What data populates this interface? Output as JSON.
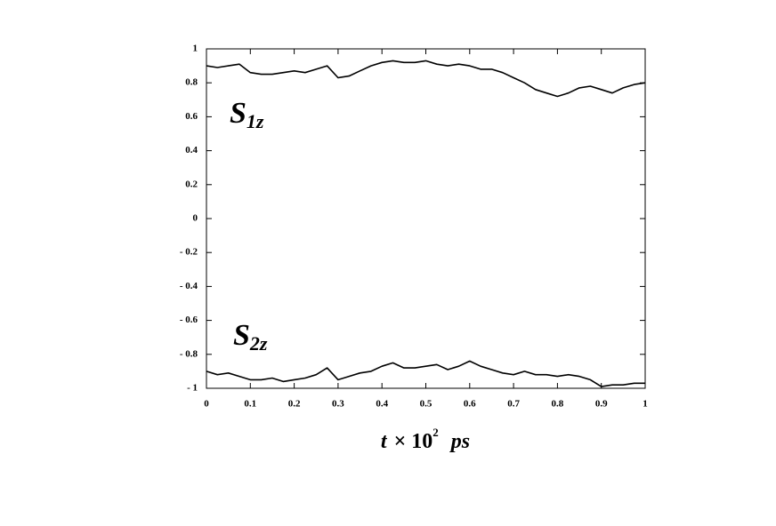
{
  "chart_data": {
    "type": "line",
    "x": [
      0,
      0.025,
      0.05,
      0.075,
      0.1,
      0.125,
      0.15,
      0.175,
      0.2,
      0.225,
      0.25,
      0.275,
      0.3,
      0.325,
      0.35,
      0.375,
      0.4,
      0.425,
      0.45,
      0.475,
      0.5,
      0.525,
      0.55,
      0.575,
      0.6,
      0.625,
      0.65,
      0.675,
      0.7,
      0.725,
      0.75,
      0.775,
      0.8,
      0.825,
      0.85,
      0.875,
      0.9,
      0.925,
      0.95,
      0.975,
      1
    ],
    "series": [
      {
        "color": "#000000",
        "values": [
          0.9,
          0.89,
          0.9,
          0.91,
          0.86,
          0.85,
          0.85,
          0.86,
          0.87,
          0.86,
          0.88,
          0.9,
          0.83,
          0.84,
          0.87,
          0.9,
          0.92,
          0.93,
          0.92,
          0.92,
          0.93,
          0.91,
          0.9,
          0.91,
          0.9,
          0.88,
          0.88,
          0.86,
          0.83,
          0.8,
          0.76,
          0.74,
          0.72,
          0.74,
          0.77,
          0.78,
          0.76,
          0.74,
          0.77,
          0.79,
          0.8
        ]
      },
      {
        "color": "#000000",
        "values": [
          -0.9,
          -0.92,
          -0.91,
          -0.93,
          -0.95,
          -0.95,
          -0.94,
          -0.96,
          -0.95,
          -0.94,
          -0.92,
          -0.88,
          -0.95,
          -0.93,
          -0.91,
          -0.9,
          -0.87,
          -0.85,
          -0.88,
          -0.88,
          -0.87,
          -0.86,
          -0.89,
          -0.87,
          -0.84,
          -0.87,
          -0.89,
          -0.91,
          -0.92,
          -0.9,
          -0.92,
          -0.92,
          -0.93,
          -0.92,
          -0.93,
          -0.95,
          -0.99,
          -0.98,
          -0.98,
          -0.97,
          -0.97
        ]
      }
    ],
    "annotations": [
      {
        "text": "S",
        "sub": "1z"
      },
      {
        "text": "S",
        "sub": "2z"
      }
    ],
    "xlabel": [
      "t",
      "×",
      "10",
      "2",
      "ps"
    ],
    "xlim": [
      0,
      1
    ],
    "xticks": [
      0,
      0.1,
      0.2,
      0.3,
      0.4,
      0.5,
      0.6,
      0.7,
      0.8,
      0.9,
      1
    ],
    "ylim": [
      -1,
      1
    ],
    "yticks": [
      {
        "value": -1,
        "label": "- 1"
      },
      {
        "value": -0.8,
        "label": "- 0.8"
      },
      {
        "value": -0.6,
        "label": "- 0.6"
      },
      {
        "value": -0.4,
        "label": "- 0.4"
      },
      {
        "value": -0.2,
        "label": "- 0.2"
      },
      0,
      0.2,
      0.4,
      0.6,
      0.8,
      1
    ],
    "grid": false
  }
}
